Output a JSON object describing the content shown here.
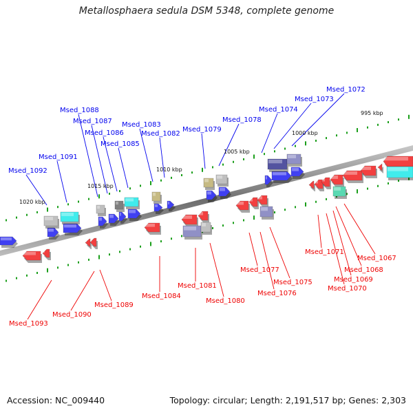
{
  "title": "Metallosphaera sedula DSM 5348, complete genome",
  "footer": {
    "accession": "Accession: NC_009440",
    "summary": "Topology: circular; Length: 2,191,517 bp; Genes: 2,303"
  },
  "ticks": [
    "995 kbp",
    "1000 kbp",
    "1005 kbp",
    "1010 kbp",
    "1015 kbp",
    "1020 kbp"
  ],
  "colors": {
    "top_strand": "#0000ee",
    "bottom_strand": "#ee0000",
    "cyan": "#00e6e6",
    "gray": "#aaaaaa",
    "navy": "#1a1a80",
    "slate": "#6b6bb3",
    "teal": "#22cc99",
    "olive": "#b3a35a",
    "backbone": "#888888",
    "tick_green": "#1a9e1a"
  },
  "top_genes": [
    "Msed_1072",
    "Msed_1073",
    "Msed_1074",
    "Msed_1078",
    "Msed_1079",
    "Msed_1082",
    "Msed_1083",
    "Msed_1085",
    "Msed_1086",
    "Msed_1087",
    "Msed_1088",
    "Msed_1091",
    "Msed_1092"
  ],
  "bottom_genes": [
    "Msed_1067",
    "Msed_1068",
    "Msed_1069",
    "Msed_1070",
    "Msed_1071",
    "Msed_1075",
    "Msed_1076",
    "Msed_1077",
    "Msed_1080",
    "Msed_1081",
    "Msed_1084",
    "Msed_1089",
    "Msed_1090",
    "Msed_1093"
  ]
}
